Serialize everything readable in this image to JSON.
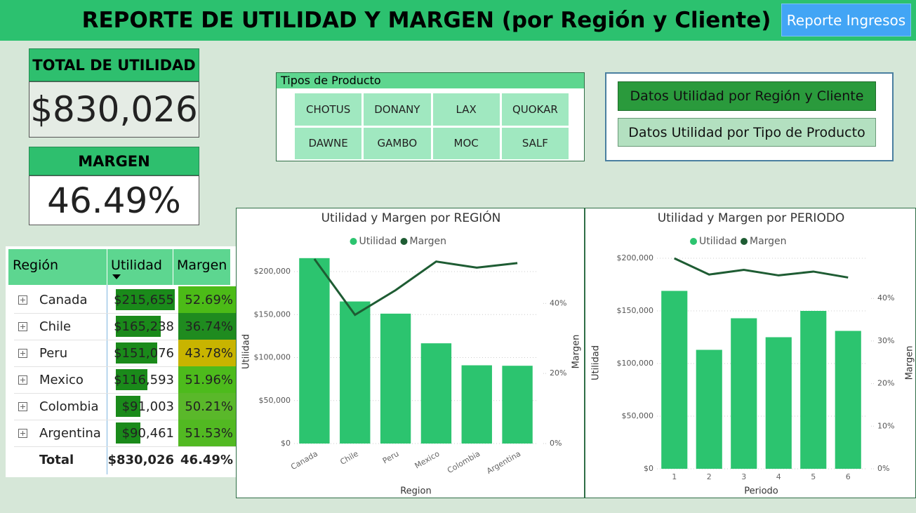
{
  "header": {
    "title": "REPORTE DE UTILIDAD Y MARGEN (por Región y Cliente)",
    "button": "Reporte Ingresos"
  },
  "kpis": [
    {
      "label": "TOTAL DE UTILIDAD",
      "value": "$830,026"
    },
    {
      "label": "MARGEN",
      "value": "46.49%"
    }
  ],
  "slicer": {
    "title": "Tipos de Producto",
    "items": [
      "CHOTUS",
      "DONANY",
      "LAX",
      "QUOKAR",
      "DAWNE",
      "GAMBO",
      "MOC",
      "SALF"
    ]
  },
  "nav_buttons": [
    "Datos Utilidad por Región y Cliente",
    "Datos Utilidad por Tipo de Producto"
  ],
  "table": {
    "columns": [
      "Región",
      "Utilidad",
      "Margen"
    ],
    "databar_color": "#1a8a1a",
    "rows": [
      {
        "region": "Canada",
        "utilidad": {
          "value": 215655,
          "label": "$215,655"
        },
        "margen": "52.69%",
        "color": "#4cbb17"
      },
      {
        "region": "Chile",
        "utilidad": {
          "value": 165238,
          "label": "$165,238"
        },
        "margen": "36.74%",
        "color": "#1f8b1f"
      },
      {
        "region": "Peru",
        "utilidad": {
          "value": 151076,
          "label": "$151,076"
        },
        "margen": "43.78%",
        "color": "#c8b400"
      },
      {
        "region": "Mexico",
        "utilidad": {
          "value": 116593,
          "label": "$116,593"
        },
        "margen": "51.96%",
        "color": "#4dbb1c"
      },
      {
        "region": "Colombia",
        "utilidad": {
          "value": 91003,
          "label": "$91,003"
        },
        "margen": "50.21%",
        "color": "#5ab82a"
      },
      {
        "region": "Argentina",
        "utilidad": {
          "value": 90461,
          "label": "$90,461"
        },
        "margen": "51.53%",
        "color": "#52b922"
      }
    ],
    "total": [
      "Total",
      "$830,026",
      "46.49%"
    ]
  },
  "chart_data": [
    {
      "type": "combo",
      "title": "Utilidad y Margen por REGIÓN",
      "xlabel": "Region",
      "ylabel": "Utilidad",
      "y2label": "Margen",
      "categories": [
        "Canada",
        "Chile",
        "Peru",
        "Mexico",
        "Colombia",
        "Argentina"
      ],
      "series": [
        {
          "name": "Utilidad",
          "color": "#2cc46f",
          "values": [
            215655,
            165238,
            151076,
            116593,
            91003,
            90461
          ]
        },
        {
          "name": "Margen",
          "color": "#1e5c33",
          "axis": "y2",
          "values": [
            52.69,
            36.74,
            43.78,
            51.96,
            50.21,
            51.53
          ]
        }
      ],
      "ylim": [
        0,
        220000
      ],
      "yticks": [
        {
          "value": 0,
          "label": "$0"
        },
        {
          "value": 50000,
          "label": "$50,000"
        },
        {
          "value": 100000,
          "label": "$100,000"
        },
        {
          "value": 150000,
          "label": "$150,000"
        },
        {
          "value": 200000,
          "label": "$200,000"
        }
      ],
      "y2lim": [
        0,
        54
      ],
      "y2ticks": [
        {
          "value": 0,
          "label": "0%"
        },
        {
          "value": 20,
          "label": "20%"
        },
        {
          "value": 40,
          "label": "40%"
        }
      ],
      "grid": true
    },
    {
      "type": "combo",
      "title": "Utilidad y Margen por PERIODO",
      "xlabel": "Periodo",
      "ylabel": "Utilidad",
      "y2label": "Margen",
      "categories": [
        1,
        2,
        3,
        4,
        5,
        6
      ],
      "series": [
        {
          "name": "Utilidad",
          "color": "#2cc46f",
          "values": [
            169000,
            113000,
            143000,
            125000,
            150000,
            131000
          ]
        },
        {
          "name": "Margen",
          "color": "#1e5c33",
          "axis": "y2",
          "values": [
            49.4,
            45.6,
            46.7,
            45.4,
            46.3,
            44.9
          ]
        }
      ],
      "ylim": [
        0,
        208000
      ],
      "yticks": [
        {
          "value": 0,
          "label": "$0"
        },
        {
          "value": 50000,
          "label": "$50,000"
        },
        {
          "value": 100000,
          "label": "$100,000"
        },
        {
          "value": 150000,
          "label": "$150,000"
        },
        {
          "value": 200000,
          "label": "$200,000"
        }
      ],
      "y2lim": [
        0,
        51.4
      ],
      "y2ticks": [
        {
          "value": 0,
          "label": "0%"
        },
        {
          "value": 10,
          "label": "10%"
        },
        {
          "value": 20,
          "label": "20%"
        },
        {
          "value": 30,
          "label": "30%"
        },
        {
          "value": 40,
          "label": "40%"
        }
      ],
      "grid": true
    }
  ]
}
